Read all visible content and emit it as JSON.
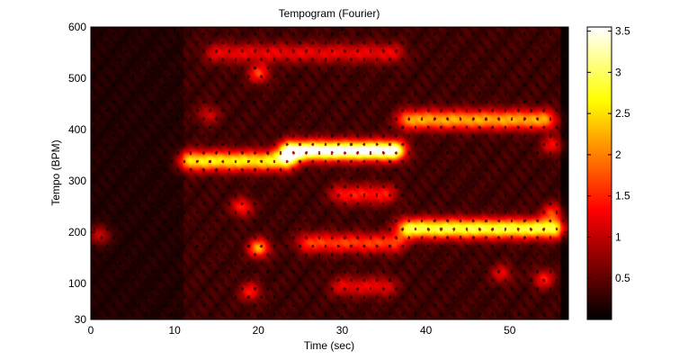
{
  "chart_data": {
    "type": "heatmap",
    "title": "Tempogram (Fourier)",
    "xlabel": "Time (sec)",
    "ylabel": "Tempo (BPM)",
    "xlim": [
      0,
      57
    ],
    "ylim": [
      30,
      600
    ],
    "xticks": [
      0,
      10,
      20,
      30,
      40,
      50
    ],
    "yticks": [
      30,
      100,
      200,
      300,
      400,
      500,
      600
    ],
    "colormap": "hot",
    "grid": false,
    "colorbar": {
      "range": [
        0,
        3.55
      ],
      "ticks": [
        0.5,
        1,
        1.5,
        2,
        2.5,
        3,
        3.5
      ],
      "placement": "right"
    },
    "background_level": 0.45,
    "low_energy_segments": [
      {
        "t_start": 0,
        "t_end": 11,
        "scale": 0.55
      },
      {
        "t_start": 56,
        "t_end": 57,
        "scale": 0.2
      }
    ],
    "tempo_tracks": [
      {
        "t_start": 12,
        "t_end": 23,
        "bpm": 340,
        "level": 2.3
      },
      {
        "t_start": 24,
        "t_end": 36,
        "bpm": 360,
        "level": 3.4
      },
      {
        "t_start": 38,
        "t_end": 55,
        "bpm": 208,
        "level": 2.6
      },
      {
        "t_start": 38,
        "t_end": 54,
        "bpm": 420,
        "level": 1.9
      },
      {
        "t_start": 26,
        "t_end": 36,
        "bpm": 180,
        "level": 1.3
      },
      {
        "t_start": 30,
        "t_end": 35,
        "bpm": 275,
        "level": 1.1
      },
      {
        "t_start": 15,
        "t_end": 36,
        "bpm": 550,
        "level": 0.9
      },
      {
        "t_start": 30,
        "t_end": 35,
        "bpm": 95,
        "level": 0.9
      }
    ],
    "hotspots": [
      {
        "t": 20,
        "bpm": 170,
        "level": 1.9
      },
      {
        "t": 20,
        "bpm": 510,
        "level": 1.3
      },
      {
        "t": 18,
        "bpm": 250,
        "level": 1.2
      },
      {
        "t": 19,
        "bpm": 85,
        "level": 1.1
      },
      {
        "t": 1,
        "bpm": 195,
        "level": 0.9
      },
      {
        "t": 54,
        "bpm": 110,
        "level": 1.1
      },
      {
        "t": 55,
        "bpm": 370,
        "level": 1.0
      },
      {
        "t": 55,
        "bpm": 240,
        "level": 1.1
      },
      {
        "t": 49,
        "bpm": 120,
        "level": 0.9
      },
      {
        "t": 14,
        "bpm": 430,
        "level": 0.8
      }
    ]
  }
}
